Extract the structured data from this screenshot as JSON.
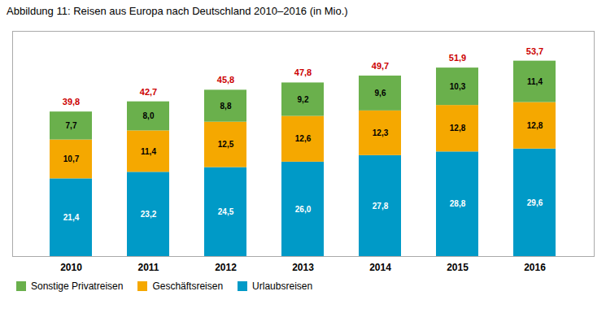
{
  "chart_data": {
    "type": "bar",
    "stacked": true,
    "title": "Abbildung 11: Reisen aus Europa nach Deutschland 2010–2016 (in Mio.)",
    "categories": [
      "2010",
      "2011",
      "2012",
      "2013",
      "2014",
      "2015",
      "2016"
    ],
    "series": [
      {
        "name": "Urlaubsreisen",
        "color": "#009ac7",
        "values": [
          21.4,
          23.2,
          24.5,
          26.0,
          27.8,
          28.8,
          29.6
        ],
        "value_labels": [
          "21,4",
          "23,2",
          "24,5",
          "26,0",
          "27,8",
          "28,8",
          "29,6"
        ]
      },
      {
        "name": "Geschäftsreisen",
        "color": "#f5a800",
        "values": [
          10.7,
          11.4,
          12.5,
          12.6,
          12.3,
          12.8,
          12.8
        ],
        "value_labels": [
          "10,7",
          "11,4",
          "12,5",
          "12,6",
          "12,3",
          "12,8",
          "12,8"
        ]
      },
      {
        "name": "Sonstige Privatreisen",
        "color": "#6ab04c",
        "values": [
          7.7,
          8.0,
          8.8,
          9.2,
          9.6,
          10.3,
          11.4
        ],
        "value_labels": [
          "7,7",
          "8,0",
          "8,8",
          "9,2",
          "9,6",
          "10,3",
          "11,4"
        ]
      }
    ],
    "totals": {
      "values": [
        39.8,
        42.7,
        45.8,
        47.8,
        49.7,
        51.9,
        53.7
      ],
      "value_labels": [
        "39,8",
        "42,7",
        "45,8",
        "47,8",
        "49,7",
        "51,9",
        "53,7"
      ],
      "color": "#cc0000"
    },
    "ylim": [
      0,
      62
    ],
    "grid": false,
    "data_labels": true,
    "tick_labels": "x",
    "legend": "lower left"
  }
}
